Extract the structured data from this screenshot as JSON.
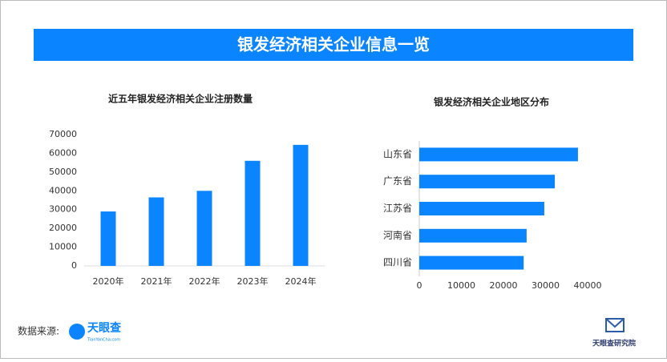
{
  "header": {
    "title": "银发经济相关企业信息一览"
  },
  "chart_data": [
    {
      "type": "bar",
      "title": "近五年银发经济相关企业注册数量",
      "categories": [
        "2020年",
        "2021年",
        "2022年",
        "2023年",
        "2024年"
      ],
      "values": [
        29000,
        36500,
        40000,
        56000,
        64500
      ],
      "color": "#0a84ff",
      "ylim": [
        0,
        70000
      ],
      "yticks": [
        0,
        10000,
        20000,
        30000,
        40000,
        50000,
        60000,
        70000
      ],
      "grid": false
    },
    {
      "type": "barh",
      "title": "银发经济相关企业地区分布",
      "categories": [
        "山东省",
        "广东省",
        "江苏省",
        "河南省",
        "四川省"
      ],
      "values": [
        37700,
        32200,
        29700,
        25500,
        24800
      ],
      "color": "#0a84ff",
      "xlim": [
        0,
        40000
      ],
      "xticks": [
        0,
        10000,
        20000,
        30000,
        40000
      ],
      "grid": false
    }
  ],
  "footer": {
    "source_label": "数据来源:",
    "logo": "天眼查",
    "logo_sub": "TianYanCha.com",
    "institute": "天眼查研究院"
  }
}
